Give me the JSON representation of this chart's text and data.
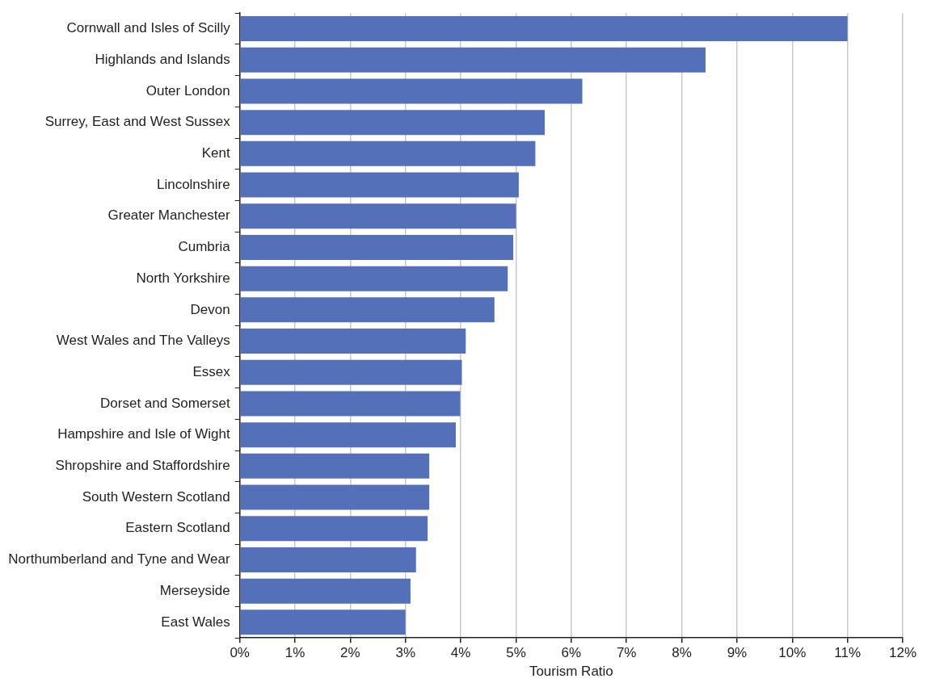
{
  "chart_data": {
    "type": "bar",
    "orientation": "horizontal",
    "xlabel": "Tourism Ratio",
    "categories": [
      "Cornwall and Isles of Scilly",
      "Highlands and Islands",
      "Outer London",
      "Surrey, East and West Sussex",
      "Kent",
      "Lincolnshire",
      "Greater Manchester",
      "Cumbria",
      "North Yorkshire",
      "Devon",
      "West Wales and The Valleys",
      "Essex",
      "Dorset and Somerset",
      "Hampshire and Isle of Wight",
      "Shropshire and Staffordshire",
      "South Western Scotland",
      "Eastern Scotland",
      "Northumberland and Tyne and Wear",
      "Merseyside",
      "East Wales"
    ],
    "values": [
      11.0,
      8.43,
      6.2,
      5.52,
      5.35,
      5.05,
      5.0,
      4.95,
      4.85,
      4.61,
      4.09,
      4.02,
      3.99,
      3.91,
      3.43,
      3.43,
      3.4,
      3.19,
      3.09,
      3.0
    ],
    "color": "#5470b8",
    "xlim": [
      0,
      12
    ],
    "xticks": [
      {
        "value": 0,
        "label": "0%"
      },
      {
        "value": 1,
        "label": "1%"
      },
      {
        "value": 2,
        "label": "2%"
      },
      {
        "value": 3,
        "label": "3%"
      },
      {
        "value": 4,
        "label": "4%"
      },
      {
        "value": 5,
        "label": "5%"
      },
      {
        "value": 6,
        "label": "6%"
      },
      {
        "value": 7,
        "label": "7%"
      },
      {
        "value": 8,
        "label": "8%"
      },
      {
        "value": 9,
        "label": "9%"
      },
      {
        "value": 10,
        "label": "10%"
      },
      {
        "value": 11,
        "label": "11%"
      },
      {
        "value": 12,
        "label": "12%"
      }
    ],
    "grid": "x",
    "legend": false
  }
}
